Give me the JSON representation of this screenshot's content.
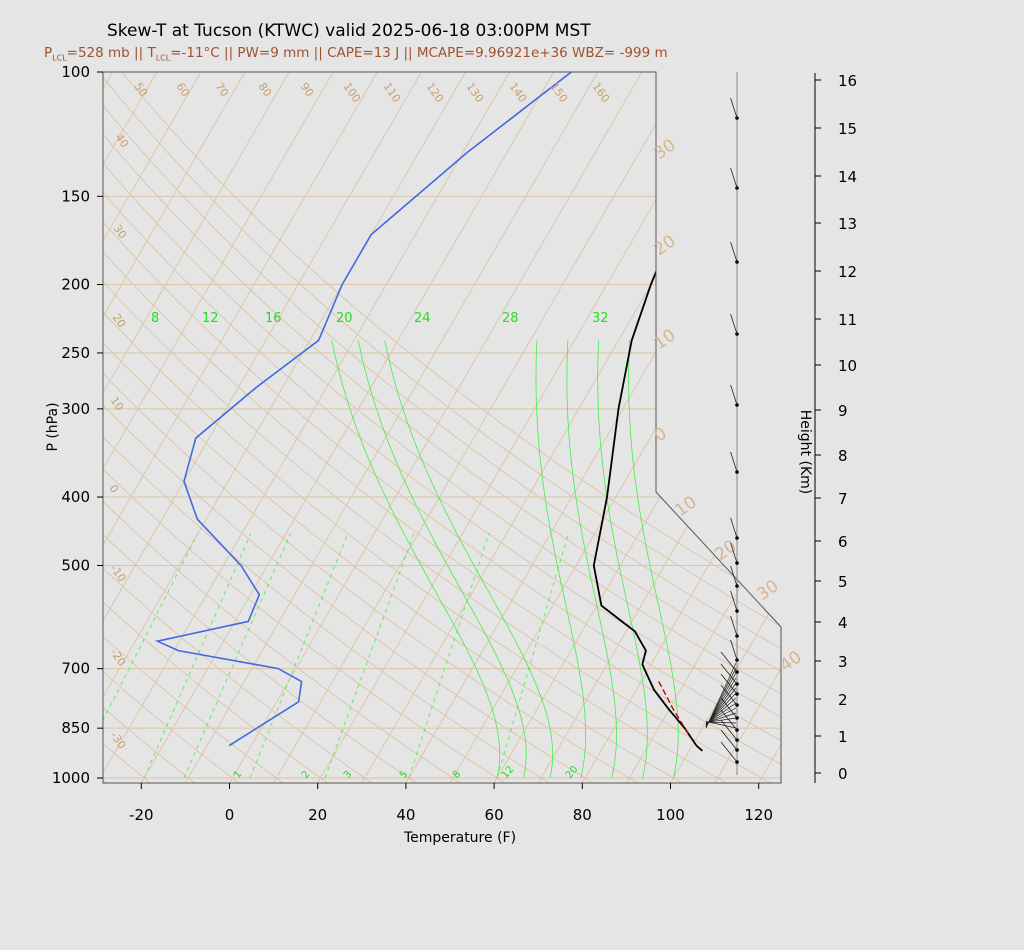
{
  "title": "Skew-T at Tucson (KTWC) valid 2025-06-18 03:00PM MST",
  "subtitle": {
    "p_lcl_pre": "P",
    "p_lcl_sub": "LCL",
    "p_lcl_val": "=528 mb",
    "sep1": " || ",
    "t_lcl_pre": "T",
    "t_lcl_sub": "LCL",
    "t_lcl_val": "=-11°C",
    "rest": " || PW=9 mm || CAPE=13 J || MCAPE=9.96921e+36 WBZ= -999 m"
  },
  "chart_data": {
    "type": "skew-t",
    "xlabel": "Temperature (F)",
    "ylabel": "P (hPa)",
    "y2label": "Height (Km)",
    "x_ticks": [
      "-20",
      "0",
      "20",
      "40",
      "60",
      "80",
      "100",
      "120"
    ],
    "x_tick_values": [
      -20,
      0,
      20,
      40,
      60,
      80,
      100,
      120
    ],
    "xlim": [
      -28,
      125
    ],
    "p_ticks": [
      "100",
      "150",
      "200",
      "250",
      "300",
      "400",
      "500",
      "700",
      "850",
      "1000"
    ],
    "p_tick_values": [
      100,
      150,
      200,
      250,
      300,
      400,
      500,
      700,
      850,
      1000
    ],
    "height_ticks": [
      "0",
      "1",
      "2",
      "3",
      "4",
      "5",
      "6",
      "7",
      "8",
      "9",
      "10",
      "11",
      "12",
      "13",
      "14",
      "15",
      "16"
    ],
    "height_tick_values": [
      0,
      1,
      2,
      3,
      4,
      5,
      6,
      7,
      8,
      9,
      10,
      11,
      12,
      13,
      14,
      15,
      16
    ],
    "isotherm_labels": [
      "50",
      "60",
      "70",
      "80",
      "90",
      "100",
      "110",
      "120",
      "130",
      "140",
      "150",
      "160",
      "40",
      "30",
      "20",
      "10",
      "0",
      "-10",
      "-20",
      "-30"
    ],
    "dry_adiabat_labels": [
      "30",
      "20",
      "10",
      "0",
      "10",
      "20",
      "30",
      "40"
    ],
    "mixing_ratio_top_labels": [
      "8",
      "12",
      "16",
      "20",
      "24",
      "28",
      "32"
    ],
    "mixing_ratio_bottom_labels": [
      "1",
      "2",
      "3",
      "5",
      "8",
      "12",
      "20"
    ],
    "temperature_profile": [
      {
        "p": 100,
        "t": 44
      },
      {
        "p": 130,
        "t": 31
      },
      {
        "p": 170,
        "t": 28
      },
      {
        "p": 200,
        "t": 30
      },
      {
        "p": 240,
        "t": 33
      },
      {
        "p": 300,
        "t": 39
      },
      {
        "p": 400,
        "t": 48
      },
      {
        "p": 500,
        "t": 54
      },
      {
        "p": 570,
        "t": 61
      },
      {
        "p": 620,
        "t": 72
      },
      {
        "p": 660,
        "t": 77
      },
      {
        "p": 690,
        "t": 78
      },
      {
        "p": 700,
        "t": 79
      },
      {
        "p": 750,
        "t": 84
      },
      {
        "p": 800,
        "t": 90
      },
      {
        "p": 850,
        "t": 96
      },
      {
        "p": 900,
        "t": 101
      },
      {
        "p": 915,
        "t": 103
      }
    ],
    "dewpoint_profile": [
      {
        "p": 100,
        "t": -16
      },
      {
        "p": 130,
        "t": -29
      },
      {
        "p": 170,
        "t": -40
      },
      {
        "p": 200,
        "t": -40
      },
      {
        "p": 240,
        "t": -38
      },
      {
        "p": 280,
        "t": -46
      },
      {
        "p": 330,
        "t": -53
      },
      {
        "p": 380,
        "t": -50
      },
      {
        "p": 430,
        "t": -42
      },
      {
        "p": 500,
        "t": -26
      },
      {
        "p": 550,
        "t": -18
      },
      {
        "p": 600,
        "t": -17
      },
      {
        "p": 640,
        "t": -35
      },
      {
        "p": 660,
        "t": -29
      },
      {
        "p": 700,
        "t": -4
      },
      {
        "p": 730,
        "t": 3
      },
      {
        "p": 780,
        "t": 5
      },
      {
        "p": 900,
        "t": -5
      }
    ],
    "parcel_profile": [
      {
        "p": 730,
        "t": 84
      },
      {
        "p": 800,
        "t": 91
      },
      {
        "p": 870,
        "t": 98
      }
    ],
    "colors": {
      "temperature": "#000000",
      "dewpoint": "#4169e1",
      "parcel": "#cc0000",
      "isotherm": "#d2b48c",
      "isobar": "#d2b48c",
      "mixing_ratio": "#22dd22",
      "background": "#e5e5e5"
    }
  }
}
